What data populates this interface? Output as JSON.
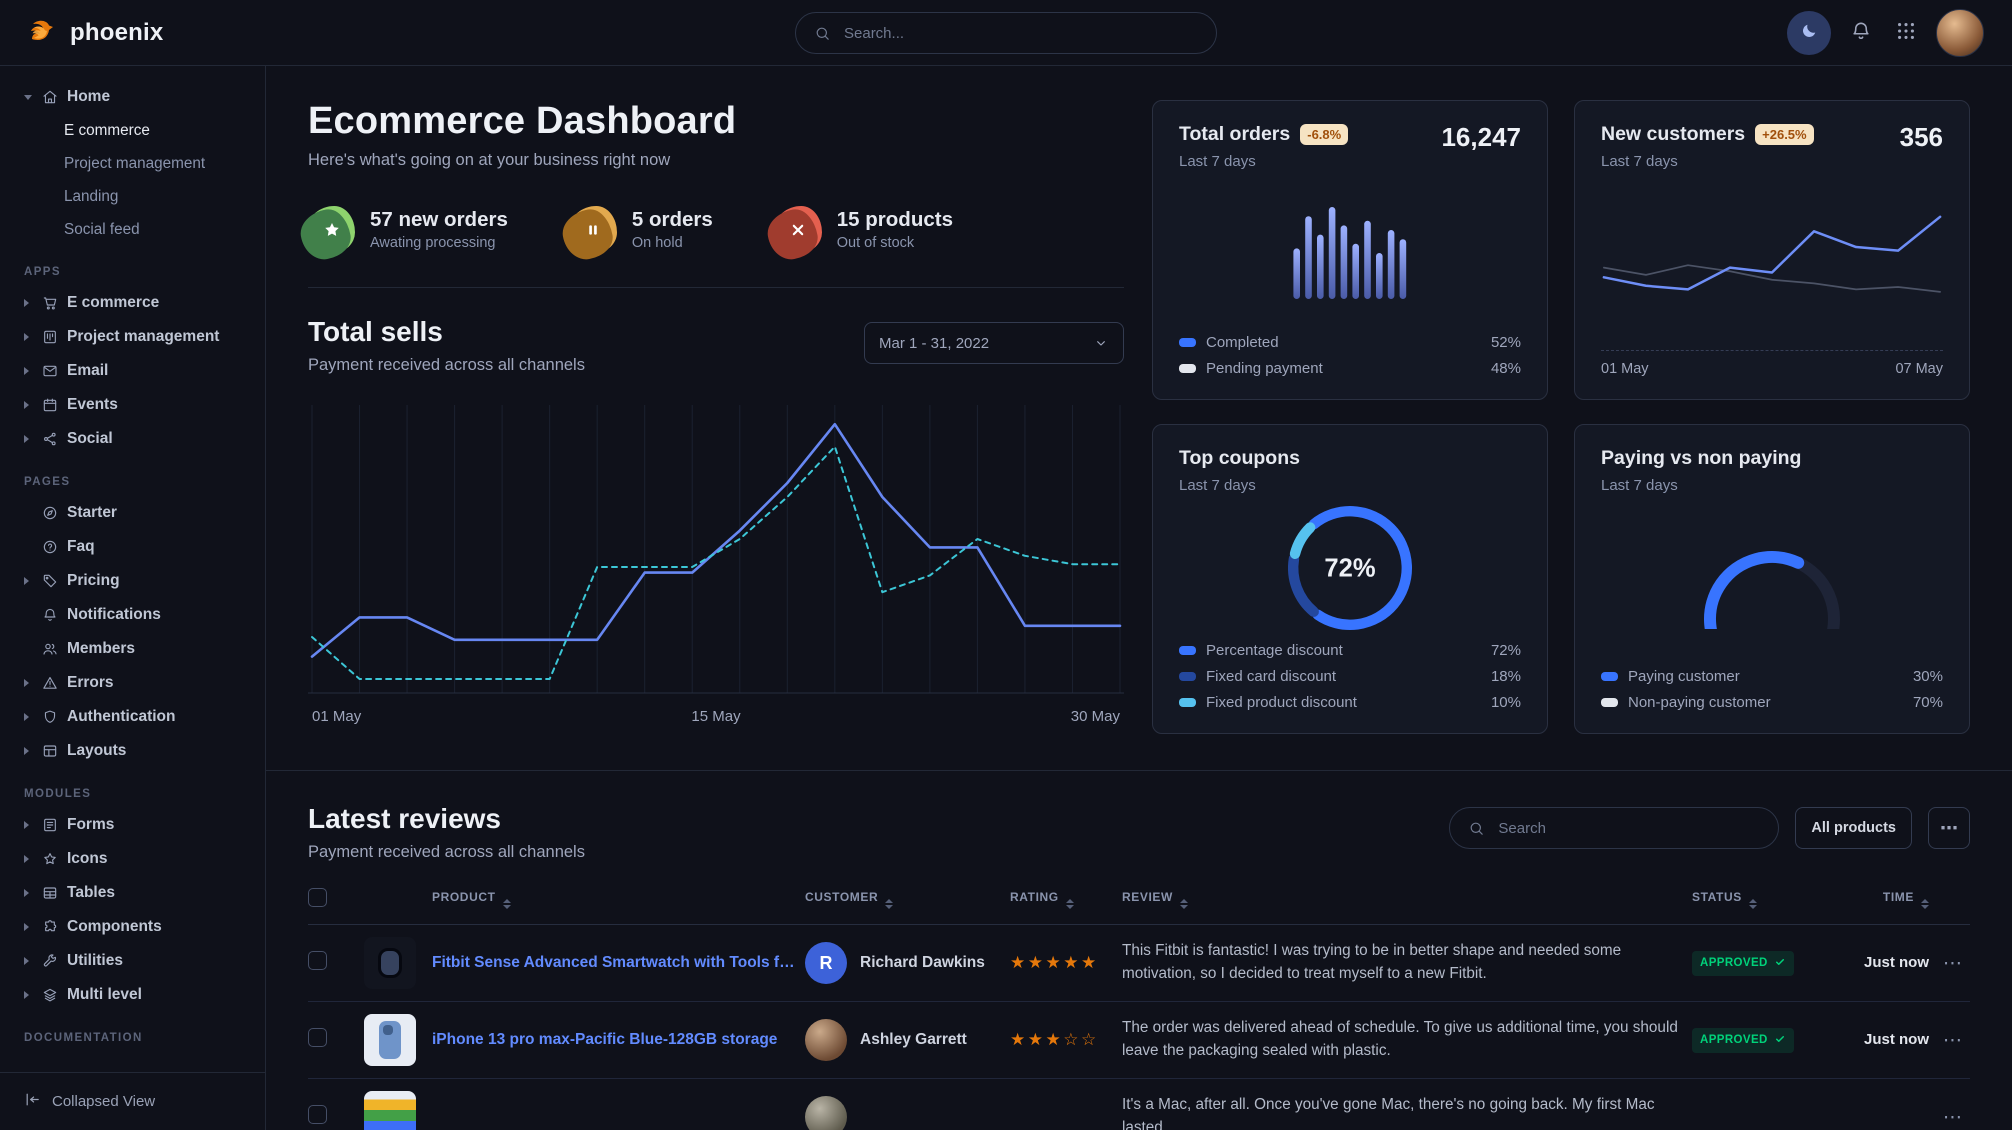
{
  "brand": {
    "name": "phoenix"
  },
  "header": {
    "search_placeholder": "Search...",
    "actions": [
      "moon",
      "bell",
      "grid",
      "avatar"
    ]
  },
  "sidebar": {
    "sections": [
      {
        "label": "",
        "items": [
          {
            "label": "Home",
            "icon": "house",
            "caret": "down",
            "children": [
              "E commerce",
              "Project management",
              "Landing",
              "Social feed"
            ],
            "active_child": "E commerce"
          }
        ]
      },
      {
        "label": "APPS",
        "items": [
          {
            "label": "E commerce",
            "icon": "cart",
            "caret": "right"
          },
          {
            "label": "Project management",
            "icon": "kanban",
            "caret": "right"
          },
          {
            "label": "Email",
            "icon": "envelope",
            "caret": "right"
          },
          {
            "label": "Events",
            "icon": "calendar",
            "caret": "right"
          },
          {
            "label": "Social",
            "icon": "share",
            "caret": "right"
          }
        ]
      },
      {
        "label": "PAGES",
        "items": [
          {
            "label": "Starter",
            "icon": "compass",
            "caret": ""
          },
          {
            "label": "Faq",
            "icon": "question",
            "caret": ""
          },
          {
            "label": "Pricing",
            "icon": "tag",
            "caret": "right"
          },
          {
            "label": "Notifications",
            "icon": "bell",
            "caret": ""
          },
          {
            "label": "Members",
            "icon": "users",
            "caret": ""
          },
          {
            "label": "Errors",
            "icon": "alert",
            "caret": "right"
          },
          {
            "label": "Authentication",
            "icon": "shield",
            "caret": "right"
          },
          {
            "label": "Layouts",
            "icon": "layout",
            "caret": "right"
          }
        ]
      },
      {
        "label": "MODULES",
        "items": [
          {
            "label": "Forms",
            "icon": "form",
            "caret": "right"
          },
          {
            "label": "Icons",
            "icon": "star",
            "caret": "right"
          },
          {
            "label": "Tables",
            "icon": "table",
            "caret": "right"
          },
          {
            "label": "Components",
            "icon": "puzzle",
            "caret": "right"
          },
          {
            "label": "Utilities",
            "icon": "wrench",
            "caret": "right"
          },
          {
            "label": "Multi level",
            "icon": "layers",
            "caret": "right"
          }
        ]
      },
      {
        "label": "DOCUMENTATION",
        "items": []
      }
    ],
    "footer": {
      "label": "Collapsed View",
      "icon": "collapse"
    }
  },
  "page": {
    "title": "Ecommerce Dashboard",
    "subtitle": "Here's what's going on at your business right now"
  },
  "stats": [
    {
      "value": "57 new orders",
      "caption": "Awating processing",
      "icon": "star-fill",
      "blob_main": "#8ed36d",
      "blob_dark": "#41804a"
    },
    {
      "value": "5 orders",
      "caption": "On hold",
      "icon": "pause-fill",
      "blob_main": "#e2a94e",
      "blob_dark": "#a06a1e"
    },
    {
      "value": "15 products",
      "caption": "Out of stock",
      "icon": "x-bold",
      "blob_main": "#e4604f",
      "blob_dark": "#a03c2e"
    }
  ],
  "total_sells": {
    "title": "Total sells",
    "subtitle": "Payment received across all channels",
    "date_range": "Mar 1 - 31, 2022"
  },
  "cards": {
    "total_orders": {
      "title": "Total orders",
      "badge": "-6.8%",
      "period": "Last 7 days",
      "value": "16,247",
      "legend": [
        {
          "label": "Completed",
          "value": "52%",
          "color": "#3874ff"
        },
        {
          "label": "Pending payment",
          "value": "48%",
          "color": "#e3e6ed"
        }
      ]
    },
    "new_customers": {
      "title": "New customers",
      "badge": "+26.5%",
      "period": "Last 7 days",
      "value": "356",
      "x_labels": [
        "01 May",
        "07 May"
      ]
    },
    "top_coupons": {
      "title": "Top coupons",
      "period": "Last 7 days"
    },
    "paying": {
      "title": "Paying vs non paying",
      "period": "Last 7 days"
    }
  },
  "reviews": {
    "title": "Latest reviews",
    "subtitle": "Payment received across all channels",
    "search_placeholder": "Search",
    "filter_button": "All products",
    "more_label": "⋯",
    "columns": [
      "PRODUCT",
      "CUSTOMER",
      "RATING",
      "REVIEW",
      "STATUS",
      "TIME"
    ],
    "rows": [
      {
        "product": "Fitbit Sense Advanced Smartwatch with Tools fo...",
        "thumb": "watch",
        "customer": {
          "name": "Richard Dawkins",
          "avatar": "initial",
          "initial": "R"
        },
        "rating": 5,
        "review": "This Fitbit is fantastic! I was trying to be in better shape and needed some motivation, so I decided to treat myself to a new Fitbit.",
        "status": "APPROVED",
        "time": "Just now"
      },
      {
        "product": "iPhone 13 pro max-Pacific Blue-128GB storage",
        "thumb": "phone",
        "customer": {
          "name": "Ashley Garrett",
          "avatar": "photo-1",
          "initial": ""
        },
        "rating": 3,
        "review": "The order was delivered ahead of schedule. To give us additional time, you should leave the packaging sealed with plastic.",
        "status": "APPROVED",
        "time": "Just now"
      },
      {
        "product": "",
        "thumb": "imac",
        "custom_note": "row partially visible at screen bottom",
        "customer": {
          "name": "",
          "avatar": "photo-2",
          "initial": ""
        },
        "rating": 0,
        "review": "It's a Mac, after all. Once you've gone Mac, there's no going back. My first Mac lasted...",
        "status": "",
        "time": ""
      }
    ]
  },
  "chart_data": [
    {
      "id": "total-sells",
      "type": "line",
      "title": "Total sells",
      "x_labels": [
        "01 May",
        "15 May",
        "30 May"
      ],
      "ylim": [
        0,
        100
      ],
      "grid": "vertical",
      "legend_position": "none",
      "series": [
        {
          "name": "current",
          "style": "solid",
          "color": "#6787f2",
          "values": [
            13,
            27,
            27,
            19,
            19,
            19,
            19,
            43,
            43,
            58,
            75,
            96,
            70,
            52,
            52,
            24,
            24,
            24
          ]
        },
        {
          "name": "previous",
          "style": "dashed",
          "color": "#3cc6d6",
          "values": [
            20,
            5,
            5,
            5,
            5,
            5,
            45,
            45,
            45,
            55,
            70,
            88,
            36,
            42,
            55,
            49,
            46,
            46
          ]
        }
      ]
    },
    {
      "id": "total-orders",
      "type": "bar",
      "title": "Total orders last 7 days",
      "values": [
        55,
        90,
        70,
        100,
        80,
        60,
        85,
        50,
        75,
        65
      ],
      "colors": {
        "top": "#9db1ff",
        "bottom": "#4a5ba8"
      }
    },
    {
      "id": "new-customers",
      "type": "line",
      "title": "New customers last 7 days",
      "x_labels": [
        "01 May",
        "07 May"
      ],
      "ylim": [
        0,
        100
      ],
      "series": [
        {
          "name": "previous",
          "style": "solid",
          "color": "#4c5366",
          "width": 1.8,
          "values": [
            48,
            42,
            50,
            45,
            38,
            35,
            30,
            32,
            28
          ]
        },
        {
          "name": "current",
          "style": "solid",
          "color": "#6e8ef7",
          "width": 2.6,
          "values": [
            40,
            33,
            30,
            48,
            44,
            78,
            65,
            62,
            90
          ]
        }
      ]
    },
    {
      "id": "top-coupons",
      "type": "donut",
      "title": "Top coupons last 7 days",
      "center_label": "72%",
      "segments": [
        {
          "label": "Percentage discount",
          "value": 72,
          "color": "#3874ff"
        },
        {
          "label": "Fixed card discount",
          "value": 18,
          "color": "#24489e"
        },
        {
          "label": "Fixed product discount",
          "value": 10,
          "color": "#56c2ef"
        }
      ]
    },
    {
      "id": "paying-gauge",
      "type": "gauge",
      "title": "Paying vs non paying last 7 days",
      "segments": [
        {
          "label": "Paying customer",
          "value": 30,
          "color": "#3874ff"
        },
        {
          "label": "Non-paying customer",
          "value": 70,
          "color": "#e3e6ed"
        }
      ]
    }
  ]
}
